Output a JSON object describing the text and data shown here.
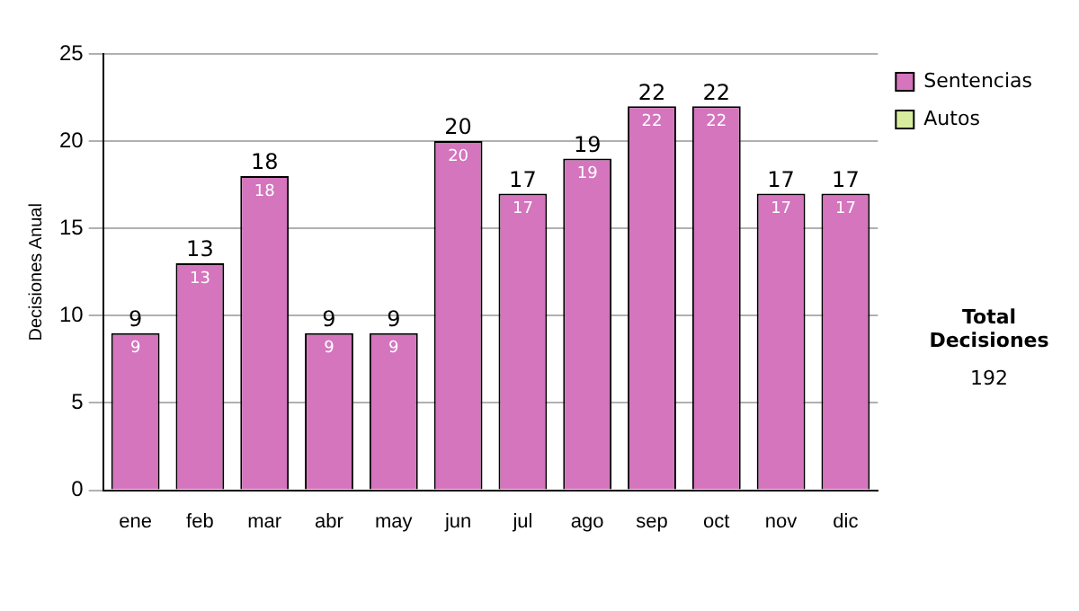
{
  "chart_data": {
    "type": "bar",
    "stacked": true,
    "ylabel": "Decisiones Anual",
    "categories": [
      "ene",
      "feb",
      "mar",
      "abr",
      "may",
      "jun",
      "jul",
      "ago",
      "sep",
      "oct",
      "nov",
      "dic"
    ],
    "series": [
      {
        "name": "Sentencias",
        "color": "#d475bd",
        "values": [
          9,
          13,
          18,
          9,
          9,
          20,
          17,
          19,
          22,
          22,
          17,
          17
        ]
      },
      {
        "name": "Autos",
        "color": "#d8eca0",
        "values": [
          null,
          null,
          null,
          null,
          null,
          null,
          null,
          null,
          null,
          null,
          null,
          null
        ]
      }
    ],
    "totals": [
      "9",
      "13",
      "18",
      "9",
      "9",
      "20",
      "17",
      "19",
      "22",
      "22",
      "17",
      "17"
    ],
    "data_labels": true,
    "ylim": [
      0,
      25
    ],
    "yticks": [
      0,
      5,
      10,
      15,
      20,
      25
    ],
    "grid": "y",
    "legend": "right",
    "annotations": [
      "Total Decisiones",
      "192"
    ]
  }
}
